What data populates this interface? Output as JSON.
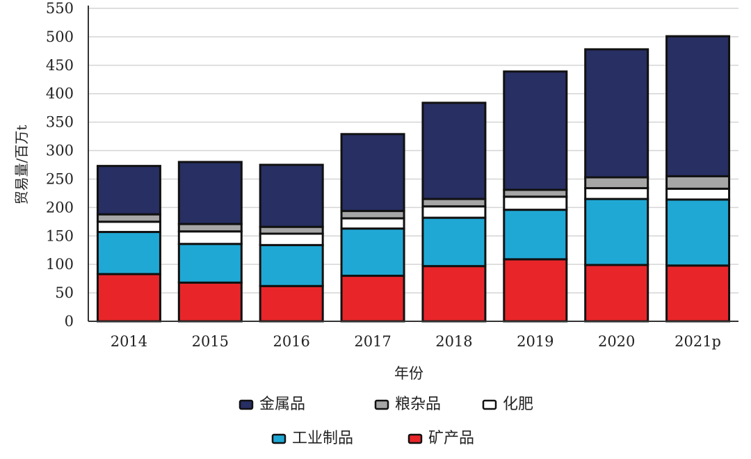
{
  "chart_data": {
    "type": "bar",
    "stacked": true,
    "title": "",
    "xlabel": "年份",
    "ylabel": "贸易量/百万t",
    "ylim": [
      0,
      550
    ],
    "yticks": [
      0,
      50,
      100,
      150,
      200,
      250,
      300,
      350,
      400,
      450,
      500,
      550
    ],
    "grid": true,
    "legend_position": "bottom",
    "categories": [
      "2014",
      "2015",
      "2016",
      "2017",
      "2018",
      "2019",
      "2020",
      "2021p"
    ],
    "series": [
      {
        "name": "矿产品",
        "color": "#e8262a",
        "values": [
          83,
          68,
          62,
          80,
          97,
          109,
          99,
          98
        ]
      },
      {
        "name": "工业制品",
        "color": "#20a8d4",
        "values": [
          74,
          68,
          72,
          83,
          85,
          87,
          116,
          116
        ]
      },
      {
        "name": "化肥",
        "color": "#ffffff",
        "values": [
          18,
          22,
          20,
          18,
          20,
          23,
          19,
          19
        ]
      },
      {
        "name": "粮杂品",
        "color": "#a6a6a6",
        "values": [
          13,
          13,
          12,
          13,
          13,
          12,
          19,
          22
        ]
      },
      {
        "name": "金属品",
        "color": "#272f63",
        "values": [
          85,
          109,
          109,
          135,
          169,
          208,
          225,
          246
        ]
      }
    ],
    "legend_order": [
      [
        "金属品",
        "粮杂品",
        "化肥"
      ],
      [
        "工业制品",
        "矿产品"
      ]
    ]
  }
}
